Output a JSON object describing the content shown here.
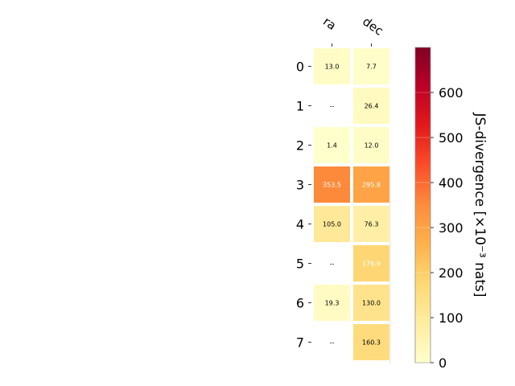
{
  "chart_data": {
    "type": "heatmap",
    "title": "",
    "columns": [
      "ra",
      "dec"
    ],
    "rows": [
      "0",
      "1",
      "2",
      "3",
      "4",
      "5",
      "6",
      "7"
    ],
    "values": [
      [
        13.0,
        7.7
      ],
      [
        null,
        26.4
      ],
      [
        1.4,
        12.0
      ],
      [
        353.5,
        295.8
      ],
      [
        105.0,
        76.3
      ],
      [
        null,
        178.9
      ],
      [
        19.3,
        130.0
      ],
      [
        null,
        160.3
      ]
    ],
    "cell_labels": [
      [
        "13.0",
        "7.7"
      ],
      [
        "--",
        "26.4"
      ],
      [
        "1.4",
        "12.0"
      ],
      [
        "353.5",
        "295.8"
      ],
      [
        "105.0",
        "76.3"
      ],
      [
        "--",
        "178.9"
      ],
      [
        "19.3",
        "130.0"
      ],
      [
        "--",
        "160.3"
      ]
    ],
    "missing_label": "--",
    "colormap": "YlOrRd",
    "colorbar": {
      "label": "JS-divergence [×10⁻³ nats]",
      "min": 0,
      "max": 700,
      "ticks": [
        "0",
        "100",
        "200",
        "300",
        "400",
        "500",
        "600"
      ]
    }
  }
}
